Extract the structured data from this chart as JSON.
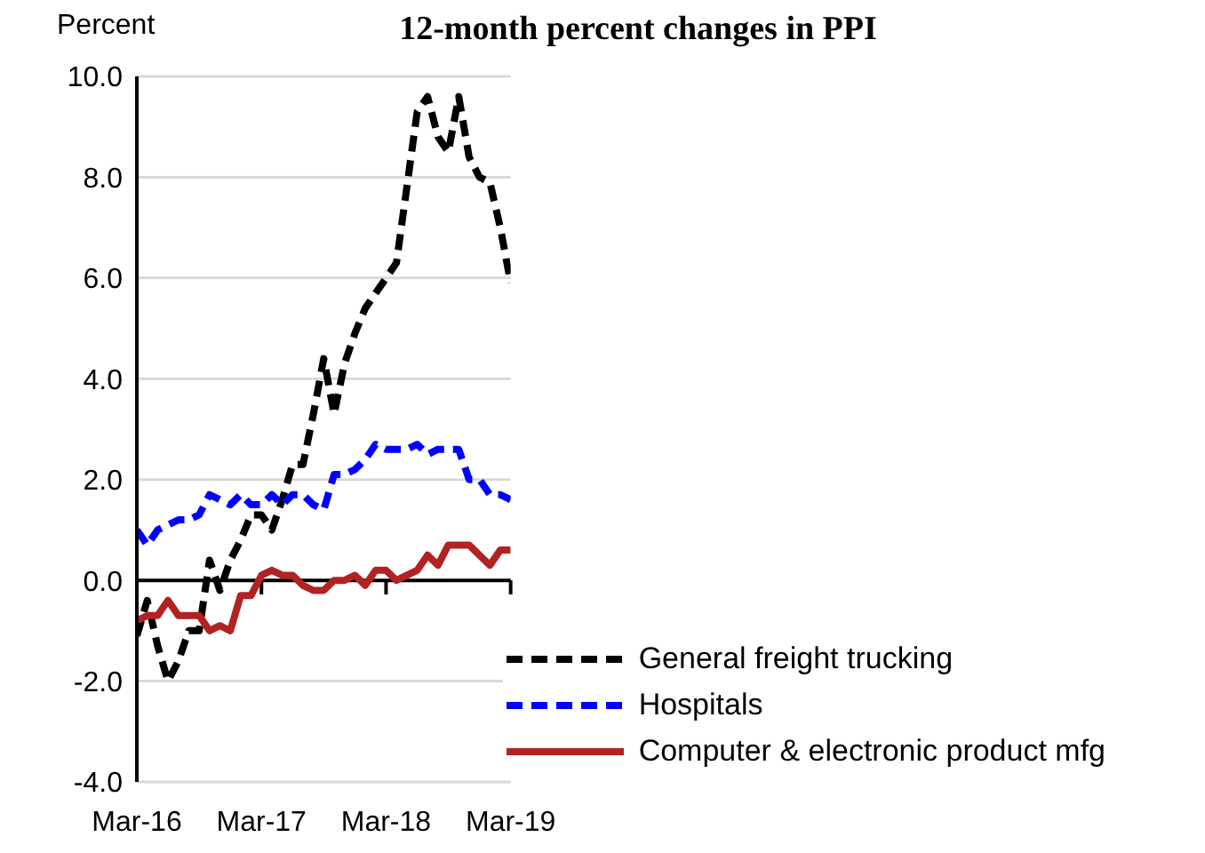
{
  "chart_data": {
    "type": "line",
    "title": "12-month percent changes in PPI",
    "ylabel": "Percent",
    "x": [
      "2016-03",
      "2016-04",
      "2016-05",
      "2016-06",
      "2016-07",
      "2016-08",
      "2016-09",
      "2016-10",
      "2016-11",
      "2016-12",
      "2017-01",
      "2017-02",
      "2017-03",
      "2017-04",
      "2017-05",
      "2017-06",
      "2017-07",
      "2017-08",
      "2017-09",
      "2017-10",
      "2017-11",
      "2017-12",
      "2018-01",
      "2018-02",
      "2018-03",
      "2018-04",
      "2018-05",
      "2018-06",
      "2018-07",
      "2018-08",
      "2018-09",
      "2018-10",
      "2018-11",
      "2018-12",
      "2019-01",
      "2019-02",
      "2019-03"
    ],
    "series": [
      {
        "name": "General freight trucking",
        "color": "#000000",
        "line_style": "dashed",
        "values": [
          -1.1,
          -0.4,
          -1.3,
          -2.0,
          -1.6,
          -1.0,
          -1.0,
          0.4,
          -0.2,
          0.4,
          0.8,
          1.3,
          1.3,
          1.0,
          1.6,
          2.3,
          2.3,
          3.3,
          4.4,
          3.3,
          4.3,
          4.9,
          5.4,
          5.7,
          6.0,
          6.3,
          7.8,
          9.3,
          9.6,
          8.8,
          8.5,
          9.6,
          8.4,
          8.0,
          7.9,
          7.0,
          5.9
        ]
      },
      {
        "name": "Hospitals",
        "color": "#0000ff",
        "line_style": "dashed",
        "values": [
          1.0,
          0.7,
          1.0,
          1.1,
          1.2,
          1.2,
          1.3,
          1.7,
          1.6,
          1.5,
          1.7,
          1.5,
          1.5,
          1.7,
          1.5,
          1.7,
          1.7,
          1.5,
          1.4,
          2.1,
          2.1,
          2.2,
          2.4,
          2.7,
          2.6,
          2.6,
          2.6,
          2.7,
          2.5,
          2.6,
          2.6,
          2.6,
          2.0,
          2.0,
          1.7,
          1.7,
          1.6
        ]
      },
      {
        "name": "Computer & electronic product mfg",
        "color": "#b22222",
        "line_style": "solid",
        "values": [
          -0.8,
          -0.7,
          -0.7,
          -0.4,
          -0.7,
          -0.7,
          -0.7,
          -1.0,
          -0.9,
          -1.0,
          -0.3,
          -0.3,
          0.1,
          0.2,
          0.1,
          0.1,
          -0.1,
          -0.2,
          -0.2,
          0.0,
          0.0,
          0.1,
          -0.1,
          0.2,
          0.2,
          0.0,
          0.1,
          0.2,
          0.5,
          0.3,
          0.7,
          0.7,
          0.7,
          0.5,
          0.3,
          0.6,
          0.6
        ]
      }
    ],
    "xlim": [
      "2016-03",
      "2019-03"
    ],
    "xticks": [
      {
        "value": "2016-03",
        "label": "Mar-16"
      },
      {
        "value": "2017-03",
        "label": "Mar-17"
      },
      {
        "value": "2018-03",
        "label": "Mar-18"
      },
      {
        "value": "2019-03",
        "label": "Mar-19"
      }
    ],
    "ylim": [
      -4,
      10
    ],
    "yticks": [
      {
        "value": -4,
        "label": "-4.0"
      },
      {
        "value": -2,
        "label": "-2.0"
      },
      {
        "value": 0,
        "label": "0.0"
      },
      {
        "value": 2,
        "label": "2.0"
      },
      {
        "value": 4,
        "label": "4.0"
      },
      {
        "value": 6,
        "label": "6.0"
      },
      {
        "value": 8,
        "label": "8.0"
      },
      {
        "value": 10,
        "label": "10.0"
      }
    ],
    "grid": "y",
    "legend": "bottom right",
    "marker": "none"
  }
}
